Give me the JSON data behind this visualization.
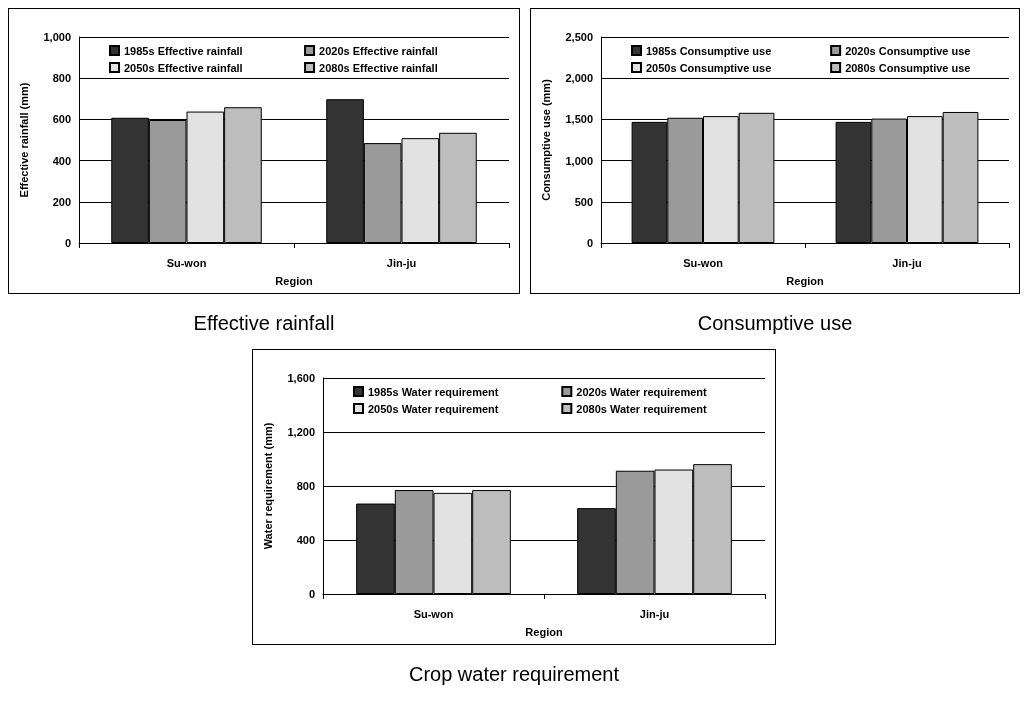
{
  "chart_data": [
    {
      "type": "bar",
      "title": "Effective rainfall",
      "xlabel": "Region",
      "ylabel": "Effective rainfall (mm)",
      "categories": [
        "Su-won",
        "Jin-ju"
      ],
      "series": [
        {
          "name": "1985s Effective rainfall",
          "color": "#333333",
          "values": [
            608,
            698
          ]
        },
        {
          "name": "2020s Effective rainfall",
          "color": "#9a9a9a",
          "values": [
            597,
            485
          ]
        },
        {
          "name": "2050s Effective rainfall",
          "color": "#e2e2e2",
          "values": [
            638,
            509
          ]
        },
        {
          "name": "2080s Effective rainfall",
          "color": "#bdbdbd",
          "values": [
            659,
            535
          ]
        }
      ],
      "ylim": [
        0,
        1000
      ],
      "yticks": [
        0,
        200,
        400,
        600,
        800,
        {
          "value": 1000,
          "label": "1,000"
        }
      ],
      "grid": "y",
      "legend": "top"
    },
    {
      "type": "bar",
      "title": "Consumptive use",
      "xlabel": "Region",
      "ylabel": "Consumptive use (mm)",
      "categories": [
        "Su-won",
        "Jin-ju"
      ],
      "series": [
        {
          "name": "1985s Consumptive use",
          "color": "#333333",
          "values": [
            1470,
            1470
          ]
        },
        {
          "name": "2020s Consumptive use",
          "color": "#9a9a9a",
          "values": [
            1520,
            1510
          ]
        },
        {
          "name": "2050s Consumptive use",
          "color": "#e2e2e2",
          "values": [
            1540,
            1540
          ]
        },
        {
          "name": "2080s Consumptive use",
          "color": "#bdbdbd",
          "values": [
            1580,
            1590
          ]
        }
      ],
      "ylim": [
        0,
        2500
      ],
      "yticks": [
        0,
        500,
        {
          "value": 1000,
          "label": "1,000"
        },
        {
          "value": 1500,
          "label": "1,500"
        },
        {
          "value": 2000,
          "label": "2,000"
        },
        {
          "value": 2500,
          "label": "2,500"
        }
      ],
      "grid": "y",
      "legend": "top"
    },
    {
      "type": "bar",
      "title": "Crop water requirement",
      "xlabel": "Region",
      "ylabel": "Water requirement (mm)",
      "categories": [
        "Su-won",
        "Jin-ju"
      ],
      "series": [
        {
          "name": "1985s Water requirement",
          "color": "#333333",
          "values": [
            670,
            636
          ]
        },
        {
          "name": "2020s Water requirement",
          "color": "#9a9a9a",
          "values": [
            770,
            913
          ]
        },
        {
          "name": "2050s Water requirement",
          "color": "#e2e2e2",
          "values": [
            749,
            922
          ]
        },
        {
          "name": "2080s Water requirement",
          "color": "#bdbdbd",
          "values": [
            770,
            962
          ]
        }
      ],
      "ylim": [
        0,
        1600
      ],
      "yticks": [
        0,
        400,
        800,
        {
          "value": 1200,
          "label": "1,200"
        },
        {
          "value": 1600,
          "label": "1,600"
        }
      ],
      "grid": "y",
      "legend": "top"
    }
  ]
}
